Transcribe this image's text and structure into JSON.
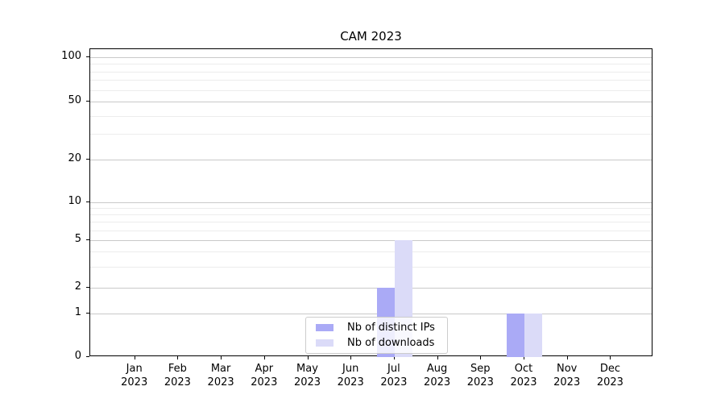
{
  "chart_data": {
    "type": "bar",
    "title": "CAM 2023",
    "categories": [
      "Jan",
      "Feb",
      "Mar",
      "Apr",
      "May",
      "Jun",
      "Jul",
      "Aug",
      "Sep",
      "Oct",
      "Nov",
      "Dec"
    ],
    "category_year": "2023",
    "series": [
      {
        "name": "Nb of distinct IPs",
        "color": "#aaaaf6",
        "values": [
          0,
          0,
          0,
          0,
          0,
          0,
          2,
          0,
          0,
          1,
          0,
          0
        ]
      },
      {
        "name": "Nb of downloads",
        "color": "#dbdbf8",
        "values": [
          0,
          0,
          0,
          0,
          0,
          0,
          5,
          0,
          0,
          1,
          0,
          0
        ]
      }
    ],
    "yaxis": {
      "scale": "symlog-like",
      "major_ticks": [
        0,
        1,
        2,
        5,
        10,
        20,
        50,
        100
      ],
      "minor_gridlines": [
        3,
        4,
        6,
        7,
        8,
        9,
        30,
        40,
        60,
        70,
        80,
        90
      ],
      "range": [
        0,
        110
      ]
    },
    "xlabel": "",
    "ylabel": "",
    "grid": true,
    "legend": {
      "position": "lower center",
      "entries": [
        "Nb of distinct IPs",
        "Nb of downloads"
      ]
    },
    "colors": {
      "major_grid": "#c9c9c9",
      "minor_grid": "#ececec",
      "spine": "#000000",
      "background": "#ffffff",
      "text": "#000000"
    }
  }
}
